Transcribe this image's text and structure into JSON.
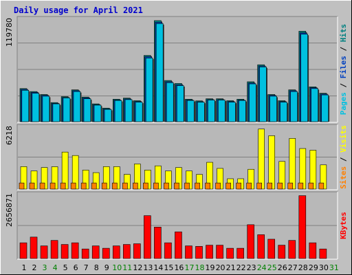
{
  "title": "Daily usage for April 2021",
  "colors": {
    "background": "#c0c0c0",
    "plot_bg": "#b8b8b8",
    "grid": "#808080",
    "pages": "#00c0e0",
    "hits": "#008080",
    "files": "#0040c0",
    "visits": "#ffff00",
    "sites": "#ff8000",
    "kbytes": "#ff0000",
    "weekend_label": "#008000",
    "weekday_label": "#000000",
    "title": "#0000cc"
  },
  "side_labels": {
    "top": [
      {
        "text": "Pages",
        "color": "#00c0e0"
      },
      {
        "text": " / ",
        "color": "#000000"
      },
      {
        "text": "Files",
        "color": "#0040c0"
      },
      {
        "text": " / ",
        "color": "#000000"
      },
      {
        "text": "Hits",
        "color": "#008080"
      }
    ],
    "middle": [
      {
        "text": "Sites",
        "color": "#ff8000"
      },
      {
        "text": " / ",
        "color": "#000000"
      },
      {
        "text": "Visits",
        "color": "#ffff00"
      }
    ],
    "bottom": [
      {
        "text": "KBytes",
        "color": "#ff0000"
      }
    ]
  },
  "chart_data": [
    {
      "type": "bar",
      "name": "hits-files-pages",
      "ymax_label": "119780",
      "ylim": [
        0,
        119780
      ],
      "categories": [
        "1",
        "2",
        "3",
        "4",
        "5",
        "6",
        "7",
        "8",
        "9",
        "10",
        "11",
        "12",
        "13",
        "14",
        "15",
        "16",
        "17",
        "18",
        "19",
        "20",
        "21",
        "22",
        "23",
        "24",
        "25",
        "26",
        "27",
        "28",
        "29",
        "30",
        "31"
      ],
      "weekend_days": [
        "3",
        "4",
        "10",
        "11",
        "17",
        "18",
        "24",
        "25",
        "31"
      ],
      "series": [
        {
          "name": "Hits",
          "color": "#008080",
          "values": [
            39000,
            35500,
            32000,
            22500,
            29500,
            37500,
            29000,
            21000,
            16000,
            26500,
            27800,
            24700,
            78000,
            119000,
            48500,
            45000,
            26500,
            24500,
            27000,
            27000,
            24700,
            26500,
            47000,
            67000,
            32000,
            24700,
            37500,
            106500,
            41000,
            33500,
            0
          ]
        },
        {
          "name": "Files",
          "color": "#0040c0",
          "values": [
            38000,
            34500,
            31000,
            21500,
            28500,
            36500,
            28000,
            20000,
            15000,
            25500,
            26800,
            23700,
            76500,
            117000,
            47000,
            43500,
            25500,
            23500,
            26000,
            26000,
            23700,
            25500,
            45500,
            65500,
            31000,
            23700,
            36500,
            104500,
            40000,
            32500,
            0
          ]
        },
        {
          "name": "Pages",
          "color": "#00c0e0",
          "values": [
            37000,
            33500,
            30000,
            21000,
            28000,
            35500,
            27000,
            19500,
            14500,
            25000,
            26000,
            23000,
            75000,
            115500,
            46000,
            42500,
            25000,
            23000,
            25500,
            25500,
            23000,
            25000,
            44500,
            64500,
            30000,
            23000,
            35500,
            103000,
            39000,
            31500,
            0
          ]
        }
      ]
    },
    {
      "type": "bar",
      "name": "visits-sites",
      "ymax_label": "6218",
      "ylim": [
        0,
        6218
      ],
      "categories": [
        "1",
        "2",
        "3",
        "4",
        "5",
        "6",
        "7",
        "8",
        "9",
        "10",
        "11",
        "12",
        "13",
        "14",
        "15",
        "16",
        "17",
        "18",
        "19",
        "20",
        "21",
        "22",
        "23",
        "24",
        "25",
        "26",
        "27",
        "28",
        "29",
        "30",
        "31"
      ],
      "series": [
        {
          "name": "Visits",
          "color": "#ffff00",
          "values": [
            2280,
            1840,
            2190,
            2270,
            3760,
            3410,
            1930,
            1670,
            2280,
            2280,
            1490,
            2550,
            1930,
            2360,
            1840,
            2190,
            1840,
            1490,
            2720,
            2100,
            1050,
            1050,
            2010,
            6100,
            5420,
            2810,
            5150,
            4120,
            3950,
            2460,
            0
          ]
        },
        {
          "name": "Sites",
          "color": "#ff8000",
          "values": [
            620,
            620,
            620,
            620,
            620,
            620,
            620,
            620,
            620,
            620,
            620,
            620,
            620,
            620,
            620,
            620,
            620,
            620,
            620,
            620,
            620,
            620,
            620,
            620,
            620,
            620,
            620,
            620,
            620,
            620,
            0
          ]
        }
      ]
    },
    {
      "type": "bar",
      "name": "kbytes",
      "ymax_label": "2656871",
      "ylim": [
        0,
        2656871
      ],
      "categories": [
        "1",
        "2",
        "3",
        "4",
        "5",
        "6",
        "7",
        "8",
        "9",
        "10",
        "11",
        "12",
        "13",
        "14",
        "15",
        "16",
        "17",
        "18",
        "19",
        "20",
        "21",
        "22",
        "23",
        "24",
        "25",
        "26",
        "27",
        "28",
        "29",
        "30",
        "31"
      ],
      "series": [
        {
          "name": "KBytes",
          "color": "#ff0000",
          "values": [
            660000,
            900000,
            530000,
            760000,
            590000,
            660000,
            400000,
            530000,
            430000,
            530000,
            590000,
            620000,
            1800000,
            1320000,
            660000,
            1120000,
            530000,
            510000,
            560000,
            560000,
            430000,
            430000,
            1420000,
            1000000,
            810000,
            560000,
            760000,
            2640000,
            660000,
            400000,
            0
          ]
        }
      ]
    }
  ]
}
